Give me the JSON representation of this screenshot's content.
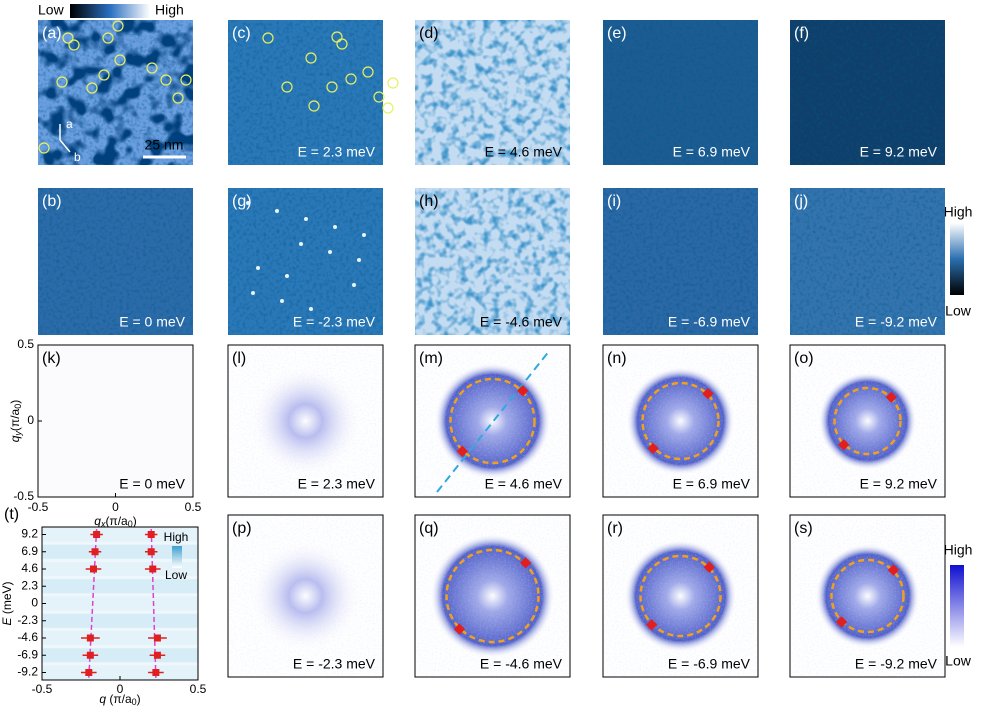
{
  "colorbars": {
    "top": {
      "low": "Low",
      "high": "High"
    },
    "stm": {
      "high": "High",
      "low": "Low"
    },
    "fft": {
      "high": "High",
      "low": "Low"
    },
    "dispersion": {
      "high": "High",
      "low": "Low"
    }
  },
  "panels": [
    {
      "label": "(a)",
      "scale_bar": "25 nm",
      "axes": [
        "a",
        "b"
      ]
    },
    {
      "label": "(c)",
      "energy": "E = 2.3 meV"
    },
    {
      "label": "(d)",
      "energy": "E = 4.6 meV"
    },
    {
      "label": "(e)",
      "energy": "E = 6.9 meV"
    },
    {
      "label": "(f)",
      "energy": "E = 9.2 meV"
    },
    {
      "label": "(b)",
      "energy": "E = 0 meV"
    },
    {
      "label": "(g)",
      "energy": "E = -2.3 meV"
    },
    {
      "label": "(h)",
      "energy": "E = -4.6 meV"
    },
    {
      "label": "(i)",
      "energy": "E = -6.9 meV"
    },
    {
      "label": "(j)",
      "energy": "E = -9.2 meV"
    },
    {
      "label": "(k)",
      "energy": "E = 0 meV"
    },
    {
      "label": "(l)",
      "energy": "E = 2.3 meV"
    },
    {
      "label": "(m)",
      "energy": "E = 4.6 meV"
    },
    {
      "label": "(n)",
      "energy": "E = 6.9 meV"
    },
    {
      "label": "(o)",
      "energy": "E = 9.2 meV"
    },
    {
      "label": "(p)",
      "energy": "E = -2.3 meV"
    },
    {
      "label": "(q)",
      "energy": "E = -4.6 meV"
    },
    {
      "label": "(r)",
      "energy": "E = -6.9 meV"
    },
    {
      "label": "(s)",
      "energy": "E = -9.2 meV"
    }
  ],
  "fft_axes": {
    "xlim": [
      -0.5,
      0.5
    ],
    "ylim": [
      -0.5,
      0.5
    ],
    "xticks": [
      -0.5,
      0,
      0.5
    ],
    "yticks": [
      0.5,
      0,
      -0.5
    ],
    "xlabel": {
      "symbol": "q",
      "sub": "x",
      "unit": "(π/a",
      "unit_sub": "0",
      "end": ")"
    },
    "ylabel": {
      "symbol": "q",
      "sub": "y",
      "unit": "(π/a",
      "unit_sub": "0",
      "end": ")"
    }
  },
  "dispersion": {
    "label": "(t)",
    "ylabel": {
      "symbol": "E",
      "unit": " (meV)"
    },
    "xlabel": {
      "symbol": "q",
      "unit": " (π/a",
      "unit_sub": "0",
      "end": ")"
    },
    "xlim": [
      -0.5,
      0.5
    ],
    "xticks": [
      -0.5,
      0,
      0.5
    ],
    "ylim": [
      -10.2,
      10.2
    ],
    "yticks": [
      9.2,
      6.9,
      4.6,
      2.3,
      0,
      -2.3,
      -4.6,
      -6.9,
      -9.2
    ],
    "energies": [
      9.2,
      6.9,
      4.6,
      -4.6,
      -6.9,
      -9.2
    ],
    "q_left": [
      -0.15,
      -0.16,
      -0.17,
      -0.19,
      -0.19,
      -0.2
    ],
    "q_right": [
      0.2,
      0.2,
      0.21,
      0.24,
      0.24,
      0.23
    ],
    "q_err": [
      0.04,
      0.04,
      0.05,
      0.06,
      0.05,
      0.05
    ],
    "color": "#e02020"
  }
}
